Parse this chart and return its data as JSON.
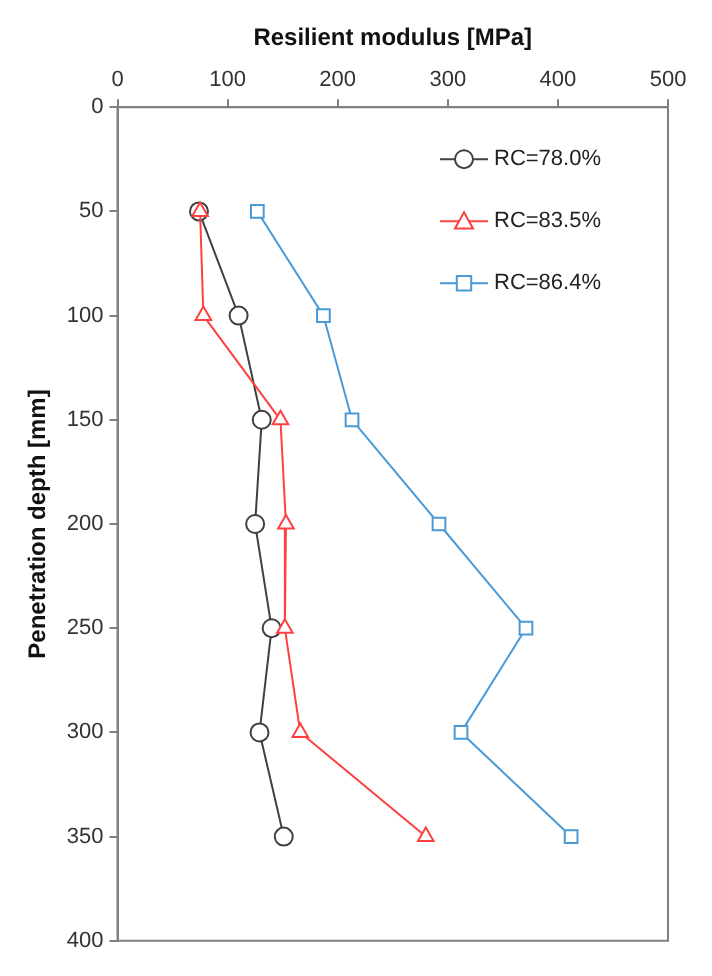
{
  "chart_data": {
    "type": "line",
    "xlabel": "Resilient modulus [MPa]",
    "ylabel": "Penetration depth [mm]",
    "xlim": [
      0,
      500
    ],
    "xticks": [
      0,
      100,
      200,
      300,
      400,
      500
    ],
    "ylim": [
      400,
      0
    ],
    "yticks": [
      0,
      50,
      100,
      150,
      200,
      250,
      300,
      350,
      400
    ],
    "grid": false,
    "legend": "top right",
    "line_style": "solid",
    "series": [
      {
        "name": "RC=78.0%",
        "color": "#404040",
        "marker": "circle",
        "x": [
          74,
          110,
          131,
          125,
          140,
          129,
          151
        ],
        "values": [
          50,
          100,
          150,
          200,
          250,
          300,
          350
        ]
      },
      {
        "name": "RC=83.5%",
        "color": "#ff4040",
        "marker": "triangle",
        "x": [
          75,
          78,
          148,
          153,
          152,
          166,
          280
        ],
        "values": [
          50,
          100,
          150,
          200,
          250,
          300,
          350
        ]
      },
      {
        "name": "RC=86.4%",
        "color": "#4a9ad8",
        "marker": "square",
        "x": [
          127,
          187,
          213,
          292,
          371,
          312,
          412
        ],
        "values": [
          50,
          100,
          150,
          200,
          250,
          300,
          350
        ]
      }
    ]
  }
}
